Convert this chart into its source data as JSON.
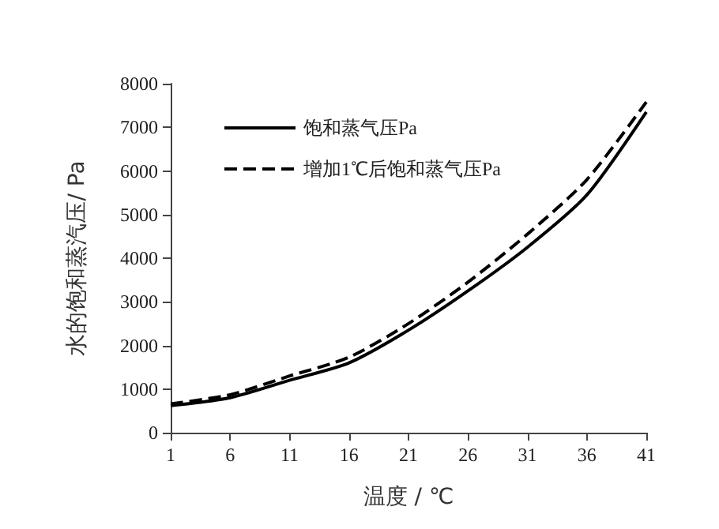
{
  "chart_data": {
    "type": "line",
    "xlabel": "温度 / ℃",
    "ylabel": "水的饱和蒸汽压/ Pa",
    "x": [
      1,
      6,
      11,
      16,
      21,
      26,
      31,
      36,
      41
    ],
    "series": [
      {
        "name": "饱和蒸气压Pa",
        "color": "#000000",
        "line_style": "solid",
        "values": [
          620,
          800,
          1200,
          1600,
          2350,
          3250,
          4250,
          5450,
          7350
        ]
      },
      {
        "name": "增加1℃后饱和蒸气压Pa",
        "color": "#000000",
        "line_style": "dashed",
        "values": [
          660,
          870,
          1300,
          1730,
          2500,
          3450,
          4550,
          5800,
          7580
        ]
      }
    ],
    "xlim": [
      1,
      41
    ],
    "xticks": [
      1,
      6,
      11,
      16,
      21,
      26,
      31,
      36,
      41
    ],
    "ylim": [
      0,
      8000
    ],
    "yticks": [
      0,
      1000,
      2000,
      3000,
      4000,
      5000,
      6000,
      7000,
      8000
    ],
    "grid": false,
    "legend": "top left",
    "marker": "none"
  }
}
